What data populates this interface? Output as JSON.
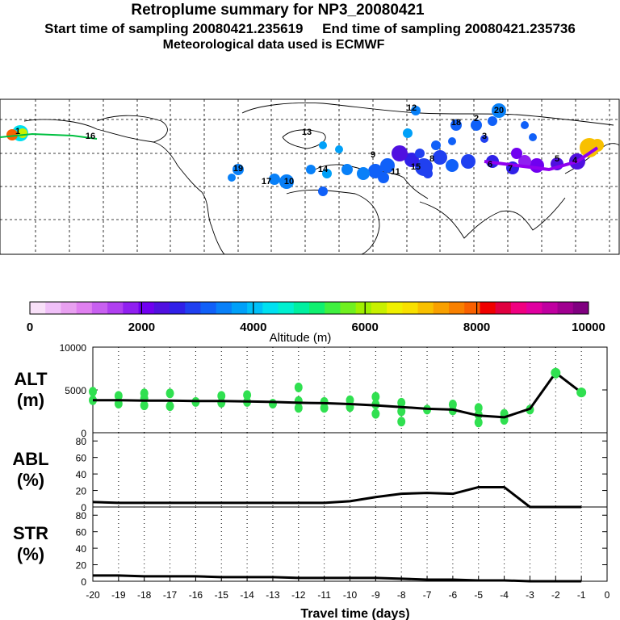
{
  "header": {
    "title": "Retroplume summary for NP3_20080421",
    "sampling_line": "Start time of sampling 20080421.235619     End time of sampling 20080421.235736",
    "met_line": "Meteorological data used is ECMWF"
  },
  "colorbar": {
    "label": "Altitude (m)",
    "tick_labels": [
      "0",
      "2000",
      "4000",
      "6000",
      "8000",
      "10000"
    ],
    "colors": [
      "#f8e0f8",
      "#f0c0f8",
      "#e8a0f0",
      "#e080f0",
      "#c860f0",
      "#b040f0",
      "#9020f0",
      "#7000f0",
      "#5010e0",
      "#3020e8",
      "#2040f0",
      "#1060f8",
      "#0880f8",
      "#00a0f8",
      "#00c0f8",
      "#00e0f0",
      "#00f0d0",
      "#00f0a0",
      "#10f070",
      "#40f040",
      "#70f020",
      "#a0f000",
      "#c8f000",
      "#f0f000",
      "#f8e000",
      "#f8c000",
      "#f8a000",
      "#f88000",
      "#f86000",
      "#f00000",
      "#e00040",
      "#f00080",
      "#e000a0",
      "#c000a0",
      "#a00090",
      "#800080"
    ]
  },
  "map_labels": [
    "1",
    "16",
    "15",
    "19",
    "17",
    "20",
    "11",
    "12",
    "13",
    "14",
    "10",
    "9",
    "8",
    "7",
    "6",
    "5",
    "4",
    "3",
    "2",
    "18"
  ],
  "chart_data": [
    {
      "type": "line",
      "name": "ALT",
      "ylabel": "ALT\n(m)",
      "ylabel_line1": "ALT",
      "ylabel_line2": "(m)",
      "ylim": [
        0,
        10000
      ],
      "yticks": [
        "10000",
        "5000",
        "0"
      ],
      "x": [
        -20,
        -19,
        -18,
        -17,
        -16,
        -15,
        -14,
        -13,
        -12,
        -11,
        -10,
        -9,
        -8,
        -7,
        -6,
        -5,
        -4,
        -3,
        -2,
        -1
      ],
      "values": [
        3800,
        3800,
        3750,
        3750,
        3700,
        3700,
        3650,
        3600,
        3500,
        3450,
        3350,
        3200,
        3000,
        2800,
        2700,
        2000,
        1800,
        2800,
        7000,
        4700
      ],
      "markers": [
        [
          -20,
          3800
        ],
        [
          -20,
          4800
        ],
        [
          -19,
          3400
        ],
        [
          -19,
          4300
        ],
        [
          -18,
          3200
        ],
        [
          -18,
          4000
        ],
        [
          -18,
          4600
        ],
        [
          -17,
          3100
        ],
        [
          -17,
          4600
        ],
        [
          -16,
          3600
        ],
        [
          -15,
          3500
        ],
        [
          -15,
          4300
        ],
        [
          -14,
          3600
        ],
        [
          -14,
          4400
        ],
        [
          -13,
          3400
        ],
        [
          -12,
          2900
        ],
        [
          -12,
          3700
        ],
        [
          -12,
          5300
        ],
        [
          -11,
          2900
        ],
        [
          -11,
          3600
        ],
        [
          -10,
          3000
        ],
        [
          -10,
          3800
        ],
        [
          -9,
          2200
        ],
        [
          -9,
          3300
        ],
        [
          -9,
          4200
        ],
        [
          -8,
          1300
        ],
        [
          -8,
          2500
        ],
        [
          -8,
          3500
        ],
        [
          -7,
          2700
        ],
        [
          -6,
          2600
        ],
        [
          -6,
          3300
        ],
        [
          -5,
          1200
        ],
        [
          -5,
          2100
        ],
        [
          -5,
          2900
        ],
        [
          -4,
          1500
        ],
        [
          -4,
          2200
        ],
        [
          -3,
          2700
        ],
        [
          -2,
          6900
        ],
        [
          -1,
          4700
        ]
      ]
    },
    {
      "type": "line",
      "name": "ABL",
      "ylabel_line1": "ABL",
      "ylabel_line2": "(%)",
      "ylim": [
        0,
        90
      ],
      "yticks": [
        "80",
        "60",
        "40",
        "20",
        "0"
      ],
      "x": [
        -20,
        -19,
        -18,
        -17,
        -16,
        -15,
        -14,
        -13,
        -12,
        -11,
        -10,
        -9,
        -8,
        -7,
        -6,
        -5,
        -4,
        -3,
        -2,
        -1
      ],
      "values": [
        6,
        5,
        5,
        5,
        5,
        5,
        5,
        5,
        5,
        5,
        7,
        12,
        16,
        17,
        16,
        24,
        24,
        0,
        0,
        0
      ]
    },
    {
      "type": "line",
      "name": "STR",
      "ylabel_line1": "STR",
      "ylabel_line2": "(%)",
      "ylim": [
        0,
        90
      ],
      "yticks": [
        "80",
        "60",
        "40",
        "20",
        "0"
      ],
      "x": [
        -20,
        -19,
        -18,
        -17,
        -16,
        -15,
        -14,
        -13,
        -12,
        -11,
        -10,
        -9,
        -8,
        -7,
        -6,
        -5,
        -4,
        -3,
        -2,
        -1
      ],
      "values": [
        7,
        7,
        6,
        6,
        6,
        5,
        5,
        5,
        4,
        4,
        4,
        4,
        3,
        2,
        2,
        1,
        1,
        0,
        0,
        0
      ]
    }
  ],
  "xaxis": {
    "label": "Travel time (days)",
    "tick_labels": [
      "-20",
      "-19",
      "-18",
      "-17",
      "-16",
      "-15",
      "-14",
      "-13",
      "-12",
      "-11",
      "-10",
      "-9",
      "-8",
      "-7",
      "-6",
      "-5",
      "-4",
      "-3",
      "-2",
      "-1",
      "0"
    ]
  }
}
